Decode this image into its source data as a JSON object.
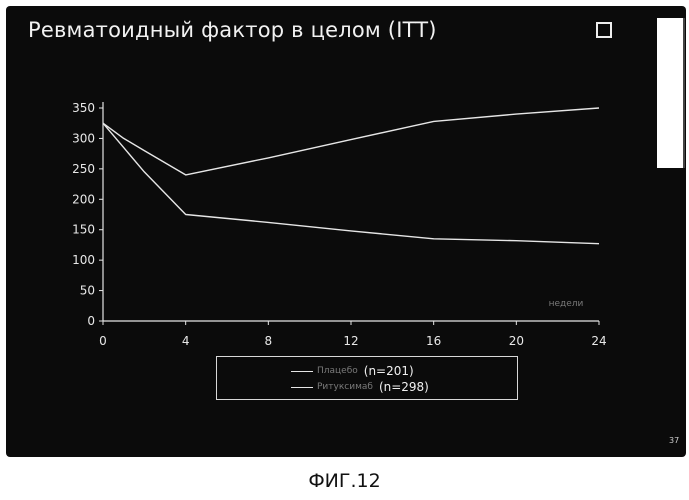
{
  "slide": {
    "title": "Ревматоидный фактор в целом (ITT)",
    "page_number": "37",
    "background": "#0b0b0b",
    "line_color": "#e6e6e6"
  },
  "figure_caption": "ФИГ.12",
  "chart_data": {
    "type": "line",
    "title": "Ревматоидный фактор в целом (ITT)",
    "xlabel": "недели",
    "ylabel": "",
    "xlim": [
      0,
      24
    ],
    "ylim": [
      0,
      350
    ],
    "x_ticks": [
      0,
      4,
      8,
      12,
      16,
      20,
      24
    ],
    "y_ticks": [
      0,
      50,
      100,
      150,
      200,
      250,
      300,
      350
    ],
    "x_tick_labels": [
      "0",
      "4",
      "8",
      "12",
      "16",
      "20",
      "24"
    ],
    "y_tick_labels": [
      "0",
      "50",
      "100",
      "150",
      "200",
      "250",
      "300",
      "350"
    ],
    "grid": false,
    "legend_position": "bottom",
    "series": [
      {
        "name": "Плацебо",
        "legend_label": "(n=201)",
        "x": [
          0,
          1,
          2,
          4,
          8,
          12,
          16,
          20,
          24
        ],
        "values": [
          325,
          300,
          280,
          240,
          268,
          298,
          328,
          340,
          350
        ]
      },
      {
        "name": "Ритуксимаб",
        "legend_label": "(n=298)",
        "x": [
          0,
          1,
          2,
          4,
          8,
          12,
          16,
          20,
          24
        ],
        "values": [
          325,
          285,
          245,
          175,
          162,
          148,
          135,
          132,
          127
        ]
      }
    ]
  }
}
